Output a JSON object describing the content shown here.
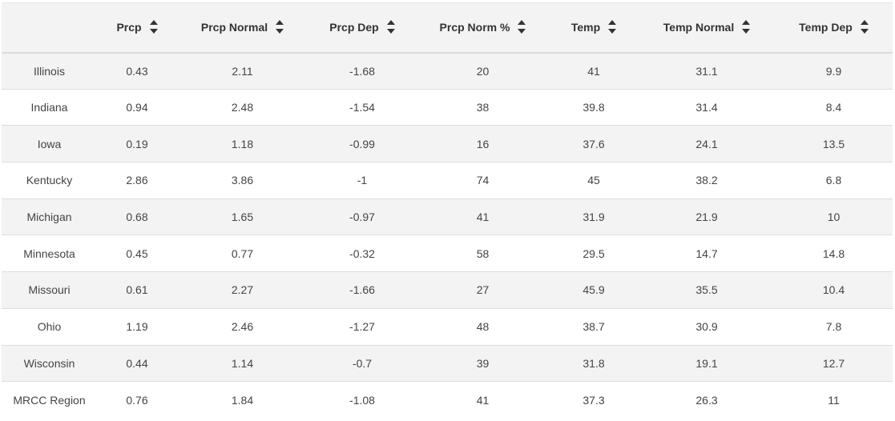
{
  "table": {
    "columns": [
      {
        "label": "",
        "sortable": false
      },
      {
        "label": "Prcp",
        "sortable": true
      },
      {
        "label": "Prcp Normal",
        "sortable": true
      },
      {
        "label": "Prcp Dep",
        "sortable": true
      },
      {
        "label": "Prcp Norm %",
        "sortable": true
      },
      {
        "label": "Temp",
        "sortable": true
      },
      {
        "label": "Temp Normal",
        "sortable": true
      },
      {
        "label": "Temp Dep",
        "sortable": true
      }
    ],
    "rows": [
      [
        "Illinois",
        "0.43",
        "2.11",
        "-1.68",
        "20",
        "41",
        "31.1",
        "9.9"
      ],
      [
        "Indiana",
        "0.94",
        "2.48",
        "-1.54",
        "38",
        "39.8",
        "31.4",
        "8.4"
      ],
      [
        "Iowa",
        "0.19",
        "1.18",
        "-0.99",
        "16",
        "37.6",
        "24.1",
        "13.5"
      ],
      [
        "Kentucky",
        "2.86",
        "3.86",
        "-1",
        "74",
        "45",
        "38.2",
        "6.8"
      ],
      [
        "Michigan",
        "0.68",
        "1.65",
        "-0.97",
        "41",
        "31.9",
        "21.9",
        "10"
      ],
      [
        "Minnesota",
        "0.45",
        "0.77",
        "-0.32",
        "58",
        "29.5",
        "14.7",
        "14.8"
      ],
      [
        "Missouri",
        "0.61",
        "2.27",
        "-1.66",
        "27",
        "45.9",
        "35.5",
        "10.4"
      ],
      [
        "Ohio",
        "1.19",
        "2.46",
        "-1.27",
        "48",
        "38.7",
        "30.9",
        "7.8"
      ],
      [
        "Wisconsin",
        "0.44",
        "1.14",
        "-0.7",
        "39",
        "31.8",
        "19.1",
        "12.7"
      ],
      [
        "MRCC Region",
        "0.76",
        "1.84",
        "-1.08",
        "41",
        "37.3",
        "26.3",
        "11"
      ]
    ]
  },
  "icons": {
    "sort": "sort-icon"
  },
  "colors": {
    "header_bg": "#f3f3f3",
    "stripe_bg": "#f3f3f3",
    "row_bg": "#ffffff",
    "border": "#dddddd",
    "text": "#444444"
  }
}
